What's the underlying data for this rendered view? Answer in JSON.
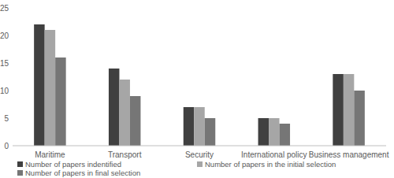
{
  "chart_data": {
    "type": "bar",
    "categories": [
      "Maritime",
      "Transport",
      "Security",
      "International policy",
      "Business management"
    ],
    "series": [
      {
        "name": "Number of papers indentified",
        "color": "#404040",
        "values": [
          22,
          14,
          7,
          5,
          13
        ]
      },
      {
        "name": "Number of papers in the initial selection",
        "color": "#a6a6a6",
        "values": [
          21,
          12,
          7,
          5,
          13
        ]
      },
      {
        "name": "Number of papers in final selection",
        "color": "#767676",
        "values": [
          16,
          9,
          5,
          4,
          10
        ]
      }
    ],
    "ylim": [
      0,
      25
    ],
    "yticks": [
      0,
      5,
      10,
      15,
      20,
      25
    ],
    "grid": false,
    "legend": "bottom"
  }
}
